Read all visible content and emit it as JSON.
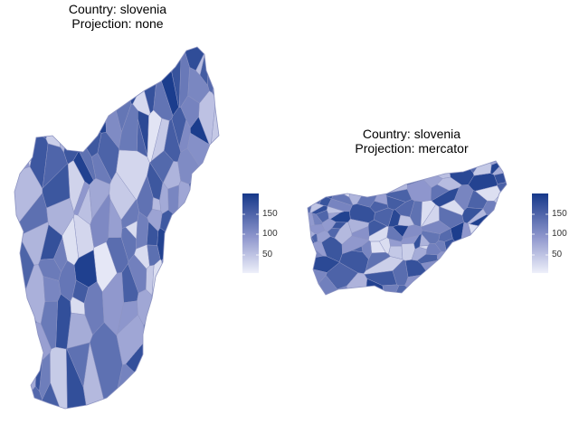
{
  "panels": [
    {
      "title_line1": "Country: slovenia",
      "title_line2": "Projection: none",
      "legend": {
        "ticks": [
          "150",
          "100",
          "50"
        ],
        "low_color": "#e6e8f6",
        "high_color": "#1a3c8c"
      }
    },
    {
      "title_line1": "Country: slovenia",
      "title_line2": "Projection: mercator",
      "legend": {
        "ticks": [
          "150",
          "100",
          "50"
        ],
        "low_color": "#e6e8f6",
        "high_color": "#1a3c8c"
      }
    }
  ],
  "colors": {
    "border": "#8d94c2",
    "fill_low": "#e6e8f6",
    "fill_high": "#1a3c8c"
  },
  "value_range": [
    1,
    193
  ]
}
